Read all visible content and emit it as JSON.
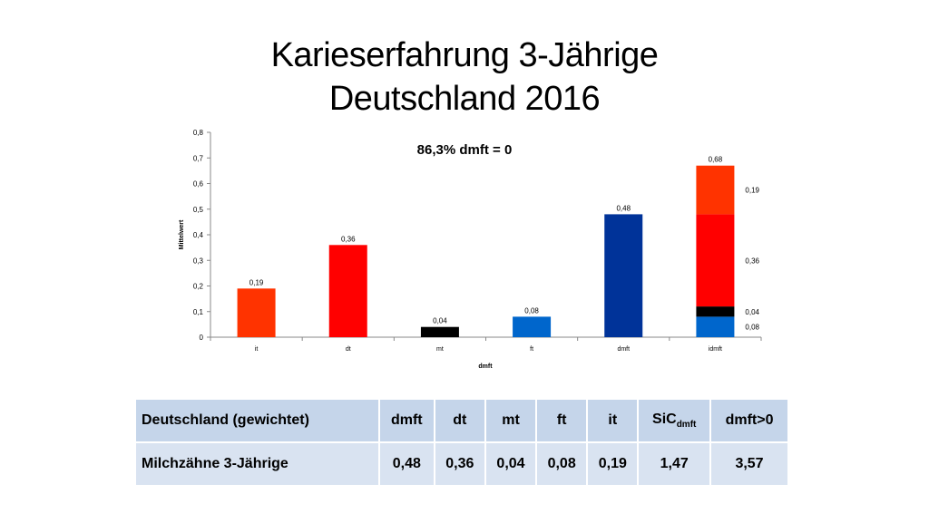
{
  "title_line1": "Karieserfahrung 3-Jährige",
  "title_line2": "Deutschland 2016",
  "chart_data": {
    "type": "bar",
    "annotation": "86,3% dmft = 0",
    "ylabel": "Mittelwert",
    "xlabel": "dmft",
    "ylim": [
      0,
      0.8
    ],
    "yticks": [
      "0",
      "0,1",
      "0,2",
      "0,3",
      "0,4",
      "0,5",
      "0,6",
      "0,7",
      "0,8"
    ],
    "categories": [
      "it",
      "dt",
      "mt",
      "ft",
      "dmft",
      "idmft"
    ],
    "bars": [
      {
        "category": "it",
        "value": 0.19,
        "label": "0,19",
        "color": "#ff3300"
      },
      {
        "category": "dt",
        "value": 0.36,
        "label": "0,36",
        "color": "#ff0000"
      },
      {
        "category": "mt",
        "value": 0.04,
        "label": "0,04",
        "color": "#000000"
      },
      {
        "category": "ft",
        "value": 0.08,
        "label": "0,08",
        "color": "#0066cc"
      },
      {
        "category": "dmft",
        "value": 0.48,
        "label": "0,48",
        "color": "#003399"
      }
    ],
    "stacked_bar": {
      "category": "idmft",
      "total_label": "0,68",
      "segments": [
        {
          "value": 0.08,
          "label": "0,08",
          "color": "#0066cc"
        },
        {
          "value": 0.04,
          "label": "0,04",
          "color": "#000000"
        },
        {
          "value": 0.36,
          "label": "0,36",
          "color": "#ff0000"
        },
        {
          "value": 0.19,
          "label": "0,19",
          "color": "#ff3300"
        }
      ]
    }
  },
  "table": {
    "headers": [
      "Deutschland (gewichtet)",
      "dmft",
      "dt",
      "mt",
      "ft",
      "it"
    ],
    "sic_main": "SiC",
    "sic_sub": "dmft",
    "last_header": "dmft>0",
    "row_label": "Milchzähne 3-Jährige",
    "values": [
      "0,48",
      "0,36",
      "0,04",
      "0,08",
      "0,19",
      "1,47",
      "3,57"
    ]
  }
}
